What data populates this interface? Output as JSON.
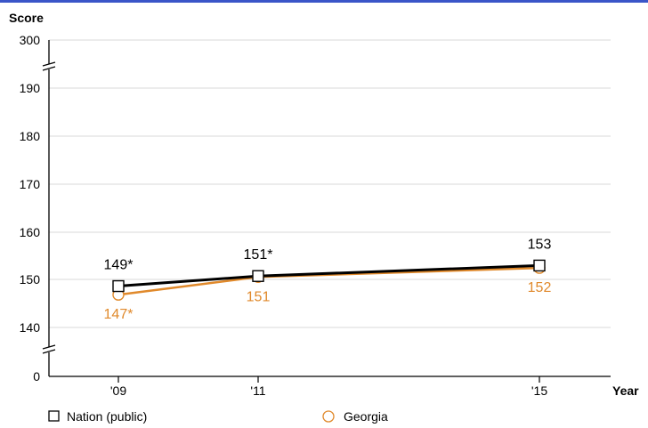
{
  "chart_data": {
    "type": "line",
    "title": "",
    "ylabel": "Score",
    "xlabel": "Year",
    "x": [
      "'09",
      "'11",
      "'15"
    ],
    "x_years": [
      2009,
      2011,
      2015
    ],
    "yticks": [
      "0",
      "140",
      "150",
      "160",
      "170",
      "180",
      "190",
      "300"
    ],
    "y_break_segment": [
      140,
      190
    ],
    "axis_breaks": [
      "0-140",
      "190-300"
    ],
    "grid": true,
    "legend_position": "bottom",
    "series": [
      {
        "name": "Nation (public)",
        "marker": "square",
        "color": "#000000",
        "values": [
          149,
          151,
          153
        ],
        "plotted_values": [
          148.6,
          150.7,
          152.9
        ],
        "labels": [
          "149*",
          "151*",
          "153"
        ],
        "label_position": "above"
      },
      {
        "name": "Georgia",
        "marker": "circle",
        "color": "#E0892B",
        "values": [
          147,
          151,
          152
        ],
        "plotted_values": [
          146.8,
          150.5,
          152.4
        ],
        "labels": [
          "147*",
          "151",
          "152"
        ],
        "label_position": "below"
      }
    ]
  }
}
